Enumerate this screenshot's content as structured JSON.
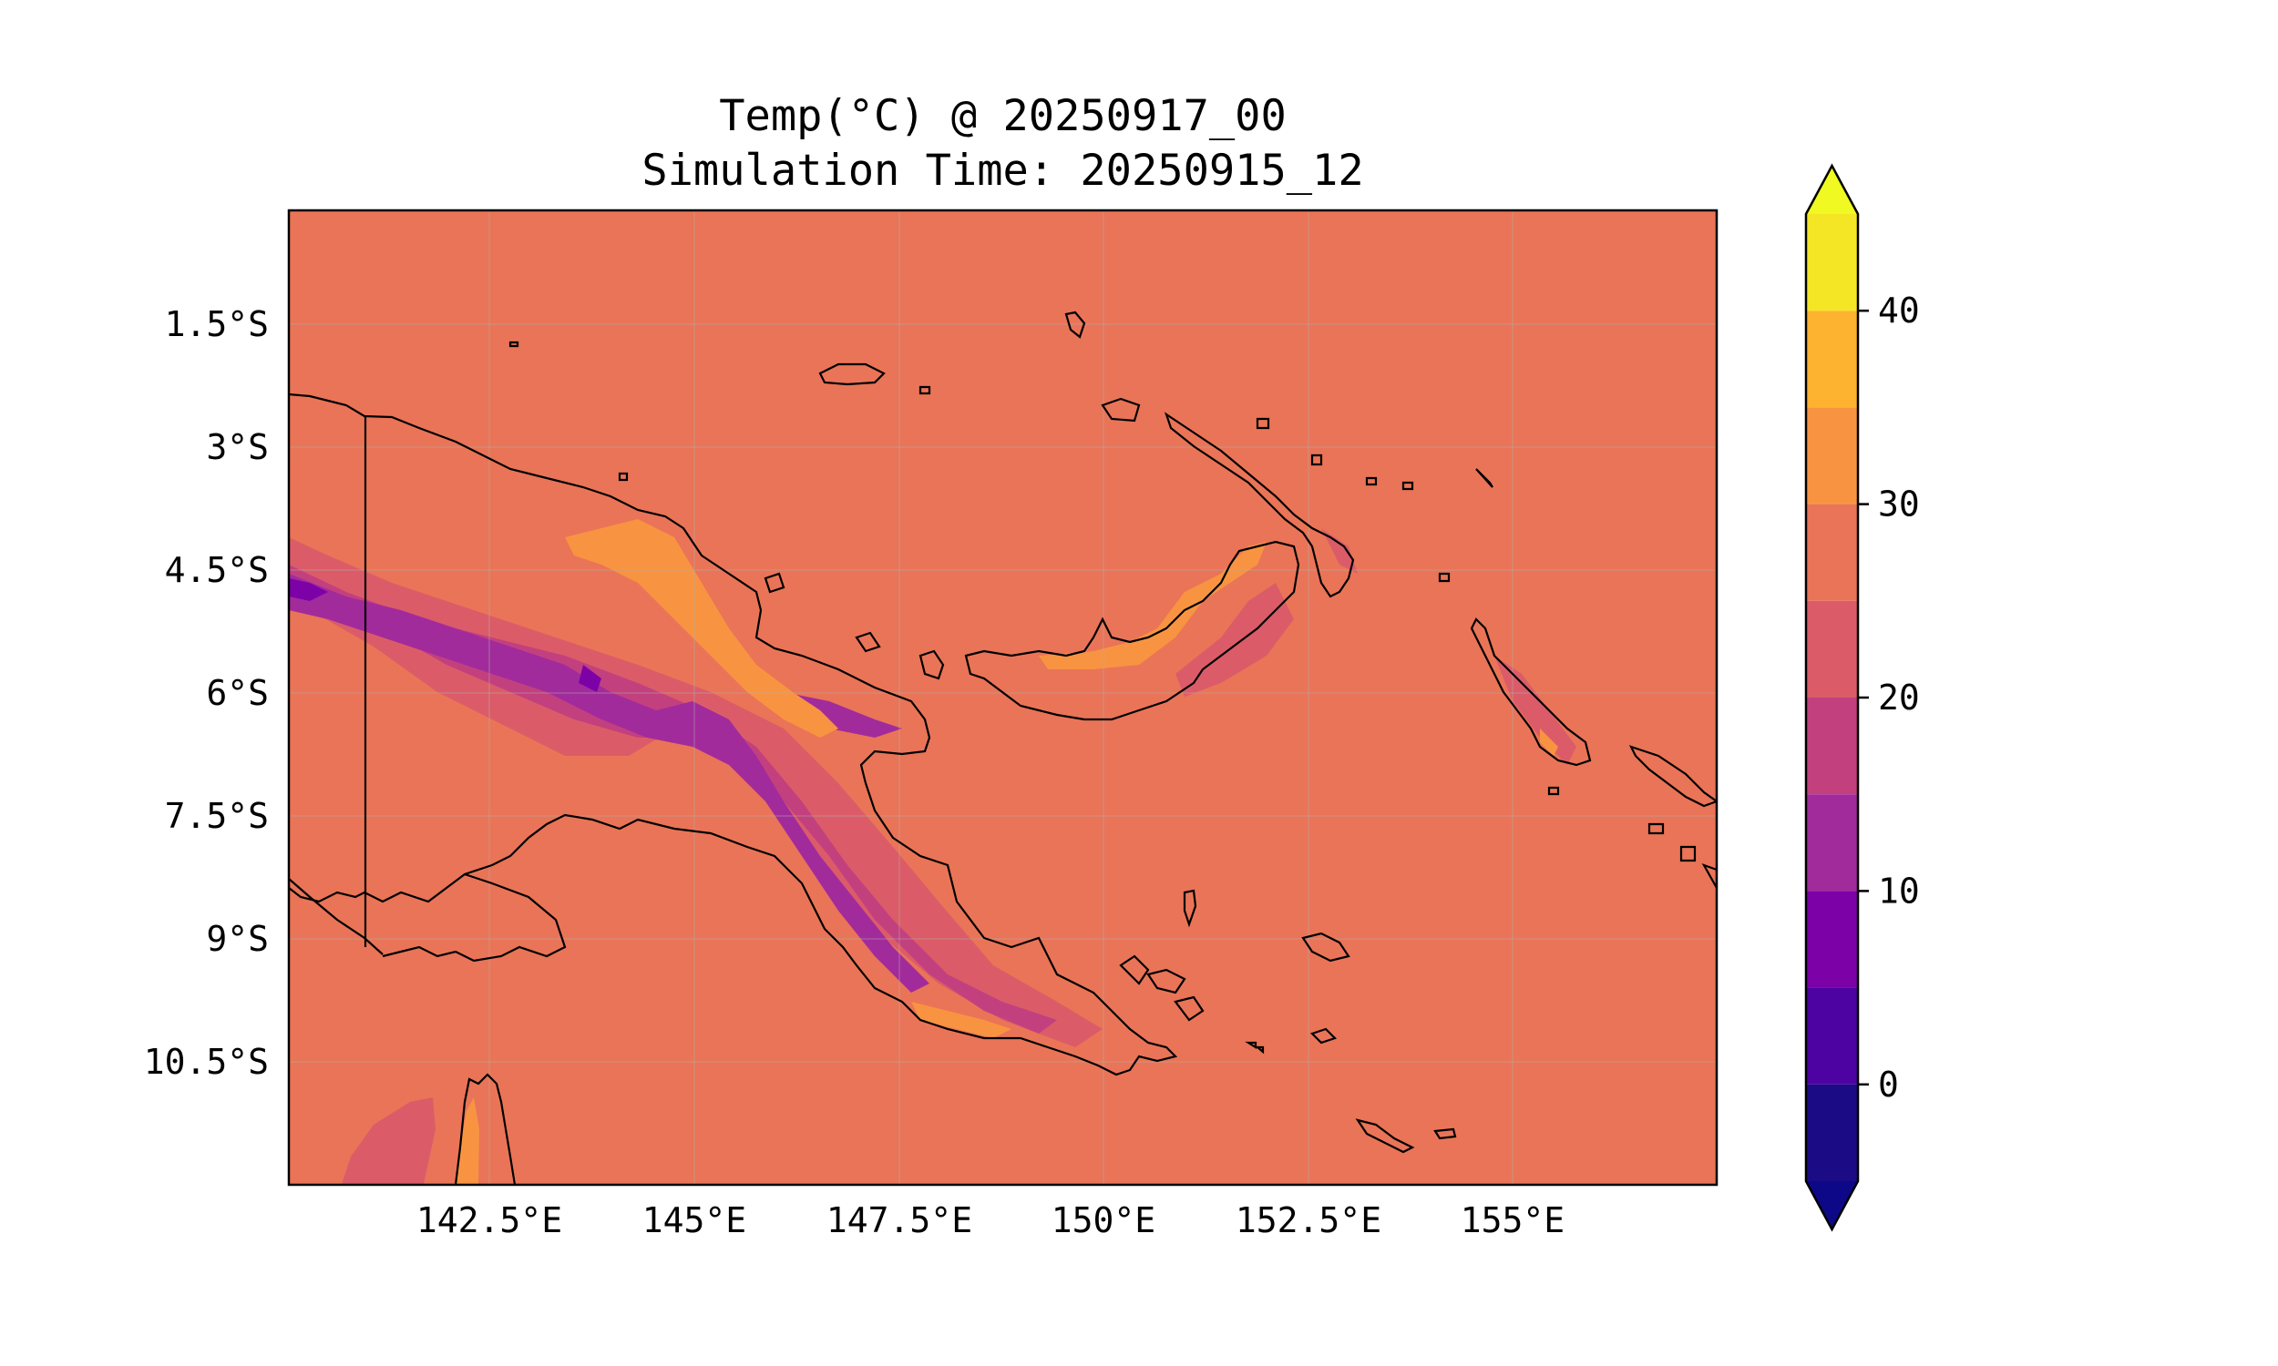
{
  "title": {
    "line1": "Temp(°C) @ 20250917_00",
    "line2": "Simulation Time: 20250915_12"
  },
  "map": {
    "region": "Papua New Guinea",
    "background_value_range": "25-30",
    "lat_ticks": [
      "1.5°S",
      "3°S",
      "4.5°S",
      "6°S",
      "7.5°S",
      "9°S",
      "10.5°S"
    ],
    "lon_ticks": [
      "142.5°E",
      "145°E",
      "147.5°E",
      "150°E",
      "152.5°E",
      "155°E"
    ],
    "colors": {
      "ocean_background": "#ea7457",
      "coastline": "#000000"
    }
  },
  "colorbar": {
    "ticks": [
      "0",
      "10",
      "20",
      "30",
      "40"
    ],
    "levels": [
      -5,
      0,
      5,
      10,
      15,
      20,
      25,
      30,
      35,
      40,
      45
    ],
    "extend": "both",
    "band_colors": [
      "#1b0c85",
      "#4d02a2",
      "#7c02a8",
      "#a22b9c",
      "#c3407f",
      "#db5c68",
      "#ea7457",
      "#f89441",
      "#fdb32f",
      "#f4e625"
    ],
    "under_color": "#0d0887",
    "over_color": "#f0f921"
  }
}
